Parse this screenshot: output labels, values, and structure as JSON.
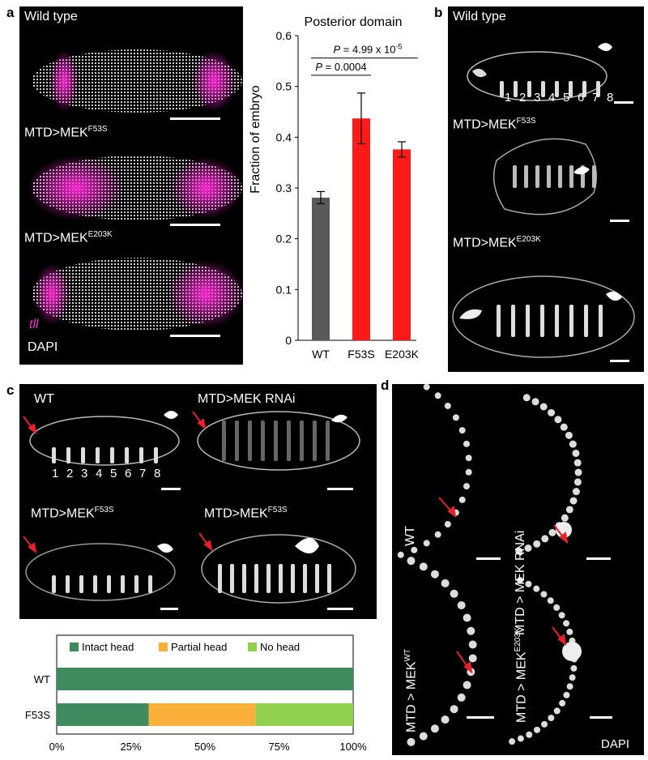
{
  "panels": {
    "a": "a",
    "b": "b",
    "c": "c",
    "d": "d"
  },
  "panel_a": {
    "labels": [
      "Wild type",
      "MTD>MEK",
      "MTD>MEK"
    ],
    "sups": [
      "",
      "F53S",
      "E203K"
    ],
    "tll": "tll",
    "dapi": "DAPI"
  },
  "panel_b": {
    "labels": [
      "Wild type",
      "MTD>MEK",
      "MTD>MEK"
    ],
    "sups": [
      "",
      "F53S",
      "E203K"
    ],
    "segments": [
      "1",
      "2",
      "3",
      "4",
      "5",
      "6",
      "7",
      "8"
    ]
  },
  "panel_c": {
    "labels": [
      "WT",
      "MTD>MEK RNAi",
      "MTD>MEK",
      "MTD>MEK"
    ],
    "sups": [
      "F53S",
      "F53S"
    ],
    "segments": [
      "1",
      "2",
      "3",
      "4",
      "5",
      "6",
      "7",
      "8"
    ]
  },
  "panel_d": {
    "labels": [
      "WT",
      "MTD > MEK RNAi",
      "MTD > MEK",
      "MTD > MEK"
    ],
    "sups": [
      "WT",
      "E203K"
    ],
    "dapi": "DAPI"
  },
  "chart_data": [
    {
      "type": "bar",
      "title": "Posterior domain",
      "ylabel": "Fraction of embryo",
      "categories": [
        "WT",
        "F53S",
        "E203K"
      ],
      "values": [
        0.281,
        0.437,
        0.376
      ],
      "errors": [
        0.012,
        0.05,
        0.015
      ],
      "colors": [
        "#595959",
        "#ff1a1a",
        "#ff1a1a"
      ],
      "ylim": [
        0,
        0.6
      ],
      "yticks": [
        "0",
        "0.1",
        "0.2",
        "0.3",
        "0.4",
        "0.5",
        "0.6"
      ],
      "annotations": [
        {
          "label": "P = 0.0004",
          "pair": [
            "WT",
            "F53S"
          ]
        },
        {
          "label": "P = 4.99 x 10",
          "sup": "-5",
          "pair": [
            "WT",
            "E203K"
          ]
        }
      ]
    },
    {
      "type": "bar",
      "orientation": "horizontal-stacked",
      "categories": [
        "WT",
        "F53S"
      ],
      "series": [
        {
          "name": "Intact head",
          "values": [
            100,
            31
          ],
          "color": "#3f8a5e"
        },
        {
          "name": "Partial head",
          "values": [
            0,
            36
          ],
          "color": "#fbb03b"
        },
        {
          "name": "No head",
          "values": [
            0,
            33
          ],
          "color": "#92d050"
        }
      ],
      "xticks": [
        "0%",
        "25%",
        "50%",
        "75%",
        "100%"
      ],
      "xlim": [
        0,
        100
      ]
    }
  ]
}
